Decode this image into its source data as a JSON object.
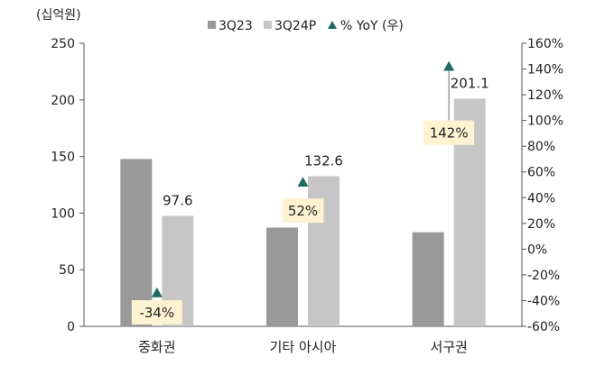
{
  "chart_data": {
    "type": "bar",
    "unit_label": "(십억원)",
    "categories": [
      "중화권",
      "기타 아시아",
      "서구권"
    ],
    "series": [
      {
        "name": "3Q23",
        "values": [
          147.8,
          87.2,
          83.1
        ],
        "color": "#999999"
      },
      {
        "name": "3Q24P",
        "values": [
          97.6,
          132.6,
          201.1
        ],
        "color": "#c6c6c6"
      }
    ],
    "value_labels": [
      "97.6",
      "132.6",
      "201.1"
    ],
    "yoy": {
      "name": "% YoY (우)",
      "values": [
        -34,
        52,
        142
      ],
      "labels": [
        "-34%",
        "52%",
        "142%"
      ],
      "marker_color": "#1f6b63",
      "label_bg": "#fdf3d2"
    },
    "y_left": {
      "min": 0,
      "max": 250,
      "ticks": [
        "0",
        "50",
        "100",
        "150",
        "200",
        "250"
      ]
    },
    "y_right": {
      "min": -60,
      "max": 160,
      "ticks": [
        "-60%",
        "-40%",
        "-20%",
        "0%",
        "20%",
        "40%",
        "60%",
        "80%",
        "100%",
        "120%",
        "140%",
        "160%"
      ]
    },
    "legend_position": "top"
  }
}
